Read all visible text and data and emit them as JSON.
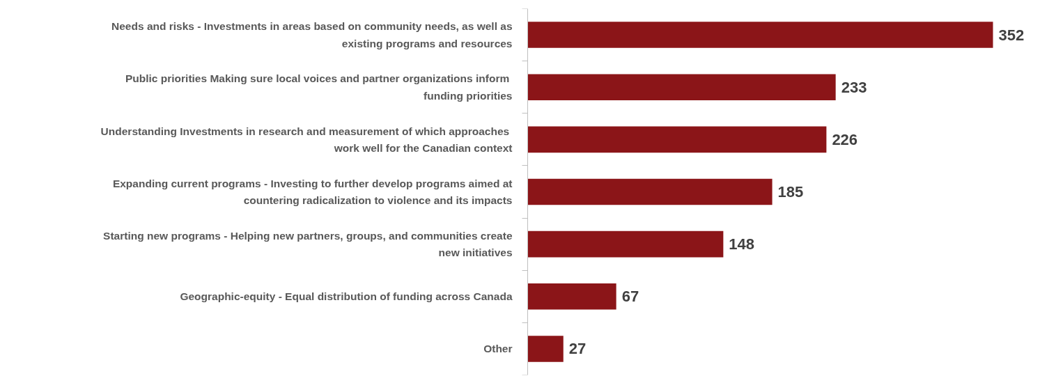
{
  "chart_data": {
    "type": "bar",
    "orientation": "horizontal",
    "data_labels": true,
    "grid": false,
    "categories": [
      "Needs and risks - Investments in areas based on community needs, as well as existing programs and resources",
      "Public priorities  Making sure local voices and partner organizations inform funding priorities",
      "Understanding  Investments in research and measurement of which approaches work well for the Canadian context",
      "Expanding current programs - Investing to further develop programs aimed at countering radicalization to violence and its impacts",
      "Starting new programs - Helping new partners, groups, and communities create new initiatives",
      "Geographic-equity - Equal distribution of funding across Canada",
      "Other"
    ],
    "values": [
      352,
      233,
      226,
      185,
      148,
      67,
      27
    ],
    "color": "#8b1518"
  }
}
